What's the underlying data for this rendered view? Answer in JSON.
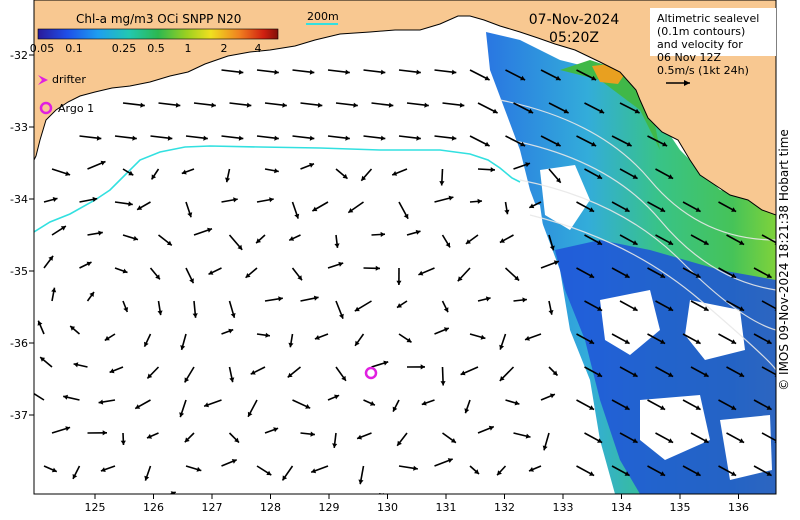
{
  "map": {
    "colorbar": {
      "title": "Chl-a mg/m3 OCi SNPP N20",
      "ticks": [
        "0.05",
        "0.1",
        "0.25",
        "0.5",
        "1",
        "2",
        "4"
      ]
    },
    "scale_label": "200m",
    "date": "07-Nov-2024",
    "time": "05:20Z",
    "info_lines": [
      "Altimetric sealevel",
      "(0.1m contours)",
      "and velocity for",
      "06 Nov 12Z",
      "0.5m/s (1kt 24h)"
    ],
    "legend": {
      "drifter": "drifter",
      "argo": "Argo 1"
    },
    "credit": "© IMOS 09-Nov-2024 18:21:38 Hobart time",
    "lon_ticks": [
      "125",
      "126",
      "127",
      "128",
      "129",
      "130",
      "131",
      "132",
      "133",
      "134",
      "135",
      "136"
    ],
    "lat_ticks": [
      "-32",
      "-33",
      "-34",
      "-35",
      "-36",
      "-37"
    ],
    "colors": {
      "land": "#f8c891",
      "contour_200m": "#32e0e0",
      "argo_marker": "#e020e0",
      "arrow": "#000000"
    }
  }
}
